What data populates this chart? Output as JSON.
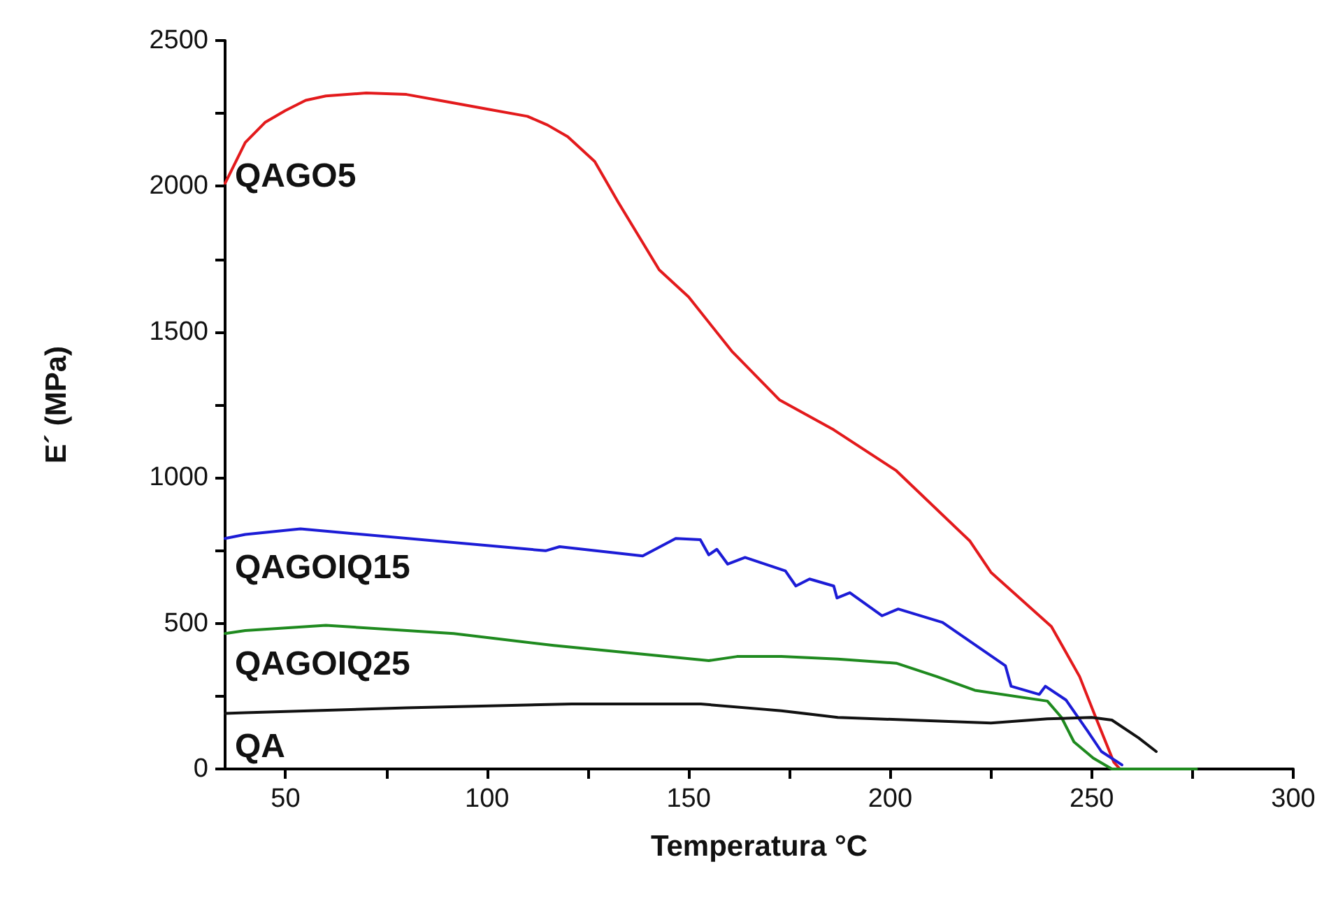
{
  "chart_data": {
    "type": "line",
    "xlabel": "Temperatura °C",
    "ylabel": "E´ (MPa)",
    "xlim": [
      35,
      300
    ],
    "xticks": [
      50,
      {
        "value": 75,
        "label": null
      },
      100,
      {
        "value": 125,
        "label": null
      },
      150,
      {
        "value": 175,
        "label": null
      },
      200,
      {
        "value": 225,
        "label": null
      },
      250,
      {
        "value": 275,
        "label": null
      },
      300
    ],
    "ylim": [
      0,
      2500
    ],
    "yticks": [
      0,
      {
        "value": 250,
        "label": null
      },
      500,
      {
        "value": 750,
        "label": null
      },
      1000,
      {
        "value": 1250,
        "label": null
      },
      1500,
      {
        "value": 1750,
        "label": null
      },
      2000,
      {
        "value": 2250,
        "label": null
      },
      2500
    ],
    "grid": false,
    "legend": false,
    "marker": "none",
    "line_style": "solid",
    "series": [
      {
        "name": "QAGO5",
        "color": "#e31a1c",
        "x": [
          35,
          40,
          45,
          50,
          55,
          60,
          70,
          80,
          90,
          100,
          110,
          115,
          120,
          126.7,
          132.5,
          142.7,
          150,
          160.7,
          172.6,
          186,
          201.5,
          219.8,
          225,
          240,
          247,
          251,
          255.5,
          257
        ],
        "values": [
          2010,
          2150,
          2220,
          2260,
          2295,
          2310,
          2320,
          2315,
          2290,
          2265,
          2240,
          2210,
          2170,
          2085,
          1946,
          1713,
          1620,
          1434,
          1266,
          1164,
          1024,
          782,
          675,
          489,
          317,
          177,
          23,
          0
        ]
      },
      {
        "name": "QAGOIQ15",
        "color": "#1c1cd6",
        "x": [
          35,
          40,
          53.7,
          114.5,
          118,
          138.6,
          146.8,
          152.9,
          155,
          157,
          159.7,
          164,
          174,
          176.6,
          180,
          186,
          186.8,
          190,
          198,
          202,
          213,
          228.6,
          230,
          237,
          238.5,
          243.6,
          249,
          252.4,
          257.5
        ],
        "values": [
          791,
          805,
          824,
          749,
          763,
          731,
          791,
          787,
          735,
          754,
          703,
          726,
          680,
          628,
          652,
          628,
          587,
          605,
          526,
          549,
          503,
          354,
          284,
          256,
          284,
          237,
          130,
          60,
          14
        ]
      },
      {
        "name": "QAGOIQ25",
        "color": "#1f8a1f",
        "x": [
          35,
          40,
          60,
          91.7,
          116.5,
          155,
          162,
          173,
          187,
          201.5,
          211.6,
          221,
          239,
          242.5,
          245.6,
          250.4,
          255,
          276
        ],
        "values": [
          465,
          475,
          493,
          465,
          424,
          372,
          386,
          386,
          377,
          363,
          317,
          270,
          233,
          177,
          93,
          37,
          0,
          0
        ]
      },
      {
        "name": "QA",
        "color": "#111111",
        "x": [
          35,
          40,
          80,
          121,
          139,
          153,
          173,
          187,
          225,
          239,
          250,
          255,
          261.6,
          266
        ],
        "values": [
          191,
          193,
          210,
          223,
          223,
          223,
          200,
          177,
          158,
          172,
          177,
          168,
          107,
          60
        ]
      }
    ]
  }
}
